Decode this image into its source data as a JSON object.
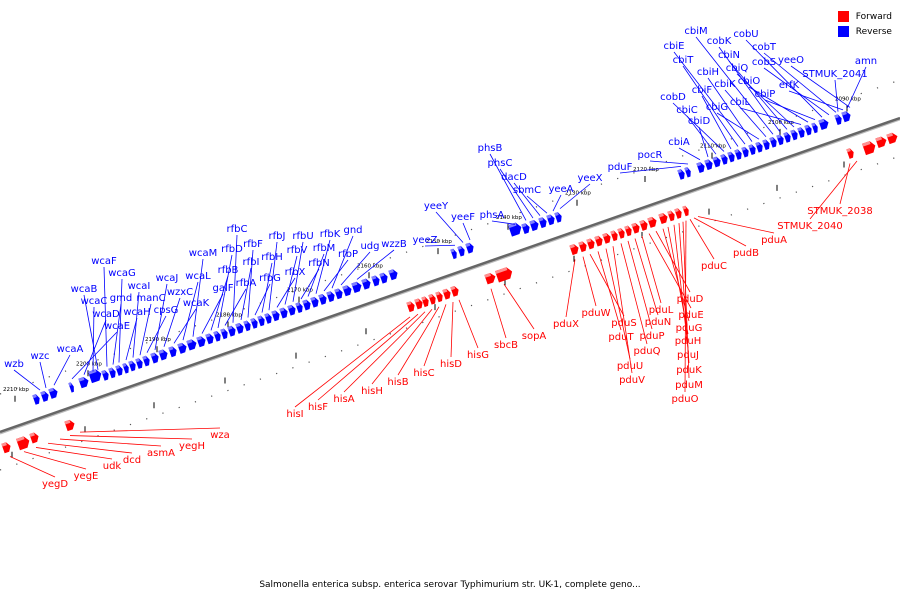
{
  "caption": "Salmonella enterica subsp. enterica serovar Typhimurium str. UK-1, complete geno...",
  "legend": {
    "forward": {
      "label": "Forward",
      "color": "#ff0000"
    },
    "reverse": {
      "label": "Reverse",
      "color": "#0000ff"
    }
  },
  "colors": {
    "forward": "#ff0000",
    "reverse": "#0000ff",
    "backbone": "#888888",
    "tick": "#000000"
  },
  "scale": {
    "unit": "kbp",
    "start": 2210,
    "end": 2090,
    "labeled_step": 10,
    "labels": [
      "2210 kbp",
      "2200 kbp",
      "2190 kbp",
      "2180 kbp",
      "2170 kbp",
      "2160 kbp",
      "2150 kbp",
      "2140 kbp",
      "2130 kbp",
      "2120 kbp",
      "2110 kbp",
      "2100 kbp",
      "2090 kbp"
    ]
  },
  "strand_note": "map runs from 2210 kbp (left) to 2090 kbp (right)",
  "reverse_genes": [
    "wzb",
    "wzc",
    "wcaA",
    "wcaE",
    "wcaD",
    "wcaC",
    "wcaB",
    "wcaF",
    "gmd",
    "wcaG",
    "wcaH",
    "wcaI",
    "manC",
    "cpsG",
    "wcaJ",
    "wzxC",
    "wcaK",
    "wcaL",
    "wcaM",
    "galF",
    "rfbB",
    "rfbD",
    "rfbA",
    "rfbC",
    "rfbI",
    "rfbF",
    "rfbG",
    "rfbH",
    "rfbJ",
    "rfbX",
    "rfbV",
    "rfbU",
    "rfbN",
    "rfbM",
    "rfbK",
    "rfbP",
    "gnd",
    "udg",
    "wzzB",
    "yeeZ",
    "yeeY",
    "yeeF",
    "phsA",
    "phsB",
    "phsC",
    "dacD",
    "sbmC",
    "yeeA",
    "yeeX",
    "pduF",
    "pocR",
    "cbiA",
    "cbiD",
    "cbiC",
    "cobD",
    "cbiF",
    "cbiT",
    "cbiE",
    "cbiH",
    "cbiG",
    "cbiK",
    "cbiM",
    "cobK",
    "cbiN",
    "cbiQ",
    "cbiL",
    "cbiO",
    "cbiP",
    "cobU",
    "cobS",
    "cobT",
    "erfK",
    "yeeO",
    "STMUK_2041",
    "amn"
  ],
  "forward_genes": [
    "yegD",
    "yegE",
    "udk",
    "dcd",
    "asmA",
    "yegH",
    "wza",
    "hisI",
    "hisF",
    "hisA",
    "hisH",
    "hisB",
    "hisC",
    "hisD",
    "hisG",
    "sbcB",
    "sopA",
    "pduX",
    "pduW",
    "pduS",
    "pduT",
    "pduU",
    "pduV",
    "pduQ",
    "pduP",
    "pduN",
    "pduL",
    "pduE",
    "pduD",
    "pduG",
    "pduH",
    "pduJ",
    "pduK",
    "pduM",
    "pduO",
    "pduC",
    "pudB",
    "pduA",
    "STMUK_2040",
    "STMUK_2038"
  ]
}
